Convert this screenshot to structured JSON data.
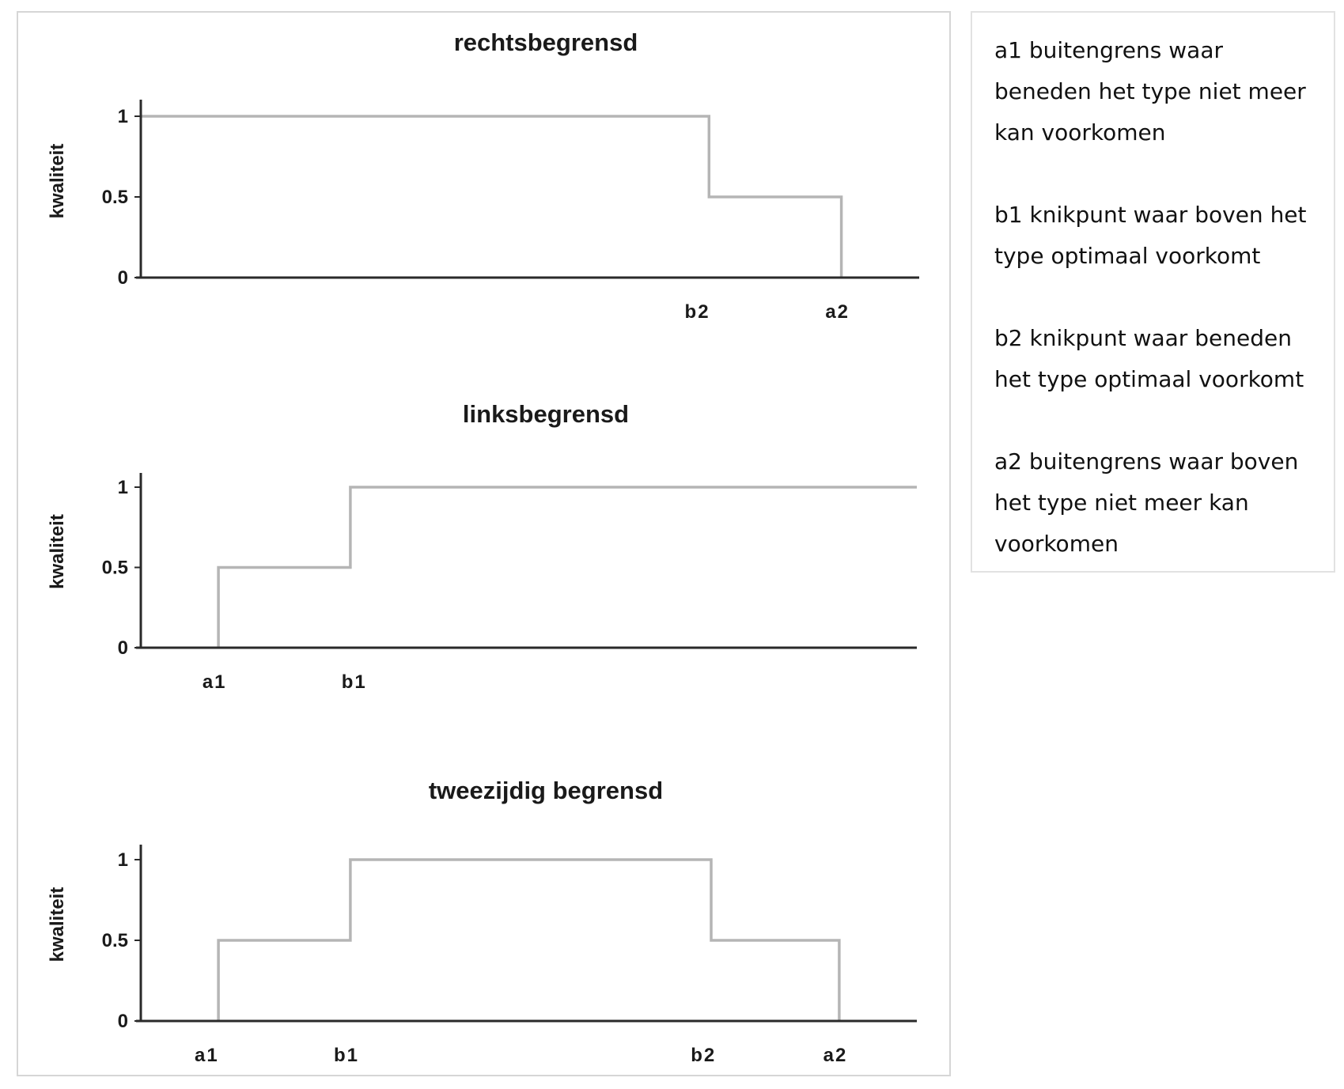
{
  "chart_data": [
    {
      "type": "line",
      "title": "rechtsbegrensd",
      "ylabel": "kwaliteit",
      "xlabel": "",
      "yticks": [
        "0",
        "0.5",
        "1"
      ],
      "ylim": [
        0,
        1
      ],
      "xlim": [
        0,
        10
      ],
      "xticks": [
        {
          "label": "b2",
          "x": 7.15
        },
        {
          "label": "a2",
          "x": 8.95
        }
      ],
      "series": [
        {
          "x": [
            0,
            7.3,
            7.3,
            9.0,
            9.0
          ],
          "values": [
            1,
            1,
            0.5,
            0.5,
            0
          ]
        }
      ]
    },
    {
      "type": "line",
      "title": "linksbegrensd",
      "ylabel": "kwaliteit",
      "xlabel": "",
      "yticks": [
        "0",
        "0.5",
        "1"
      ],
      "ylim": [
        0,
        1
      ],
      "xlim": [
        0,
        10
      ],
      "xticks": [
        {
          "label": "a1",
          "x": 0.95
        },
        {
          "label": "b1",
          "x": 2.75
        }
      ],
      "series": [
        {
          "x": [
            1.0,
            1.0,
            2.7,
            2.7,
            10
          ],
          "values": [
            0,
            0.5,
            0.5,
            1,
            1
          ]
        }
      ]
    },
    {
      "type": "line",
      "title": "tweezijdig begrensd",
      "ylabel": "kwaliteit",
      "xlabel": "",
      "yticks": [
        "0",
        "0.5",
        "1"
      ],
      "ylim": [
        0,
        1
      ],
      "xlim": [
        0,
        10
      ],
      "xticks": [
        {
          "label": "a1",
          "x": 0.85
        },
        {
          "label": "b1",
          "x": 2.65
        },
        {
          "label": "b2",
          "x": 7.25
        },
        {
          "label": "a2",
          "x": 8.95
        }
      ],
      "series": [
        {
          "x": [
            1.0,
            1.0,
            2.7,
            2.7,
            7.35,
            7.35,
            9.0,
            9.0
          ],
          "values": [
            0,
            0.5,
            0.5,
            1,
            1,
            0.5,
            0.5,
            0
          ]
        }
      ]
    }
  ],
  "legend": {
    "items": [
      "a1 buitengrens waar beneden het type niet meer kan voorkomen",
      "b1 knikpunt waar boven het type optimaal voorkomt",
      "b2 knikpunt waar beneden het type optimaal voorkomt",
      "a2 buitengrens waar boven het type niet meer kan voorkomen"
    ]
  },
  "colors": {
    "line": "#b5b5b5",
    "axis": "#2a2a2a",
    "text": "#1a1a1a"
  }
}
